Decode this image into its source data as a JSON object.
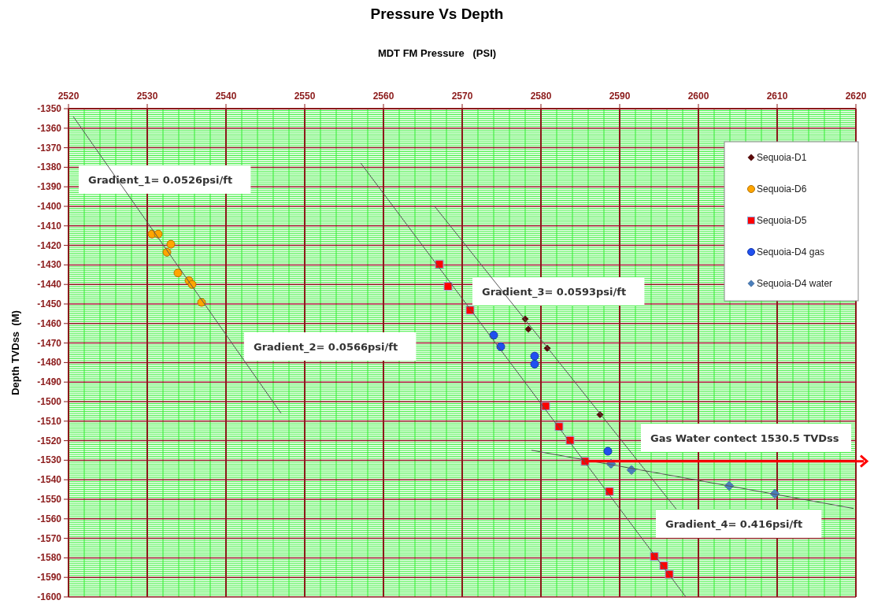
{
  "chart_data": {
    "type": "scatter",
    "title": "Pressure Vs Depth",
    "xlabel": "MDT FM Pressure   (PSI)",
    "ylabel": "Depth TVDss  (M)",
    "xlim": [
      2520,
      2620
    ],
    "xticks": [
      2520,
      2530,
      2540,
      2550,
      2560,
      2570,
      2580,
      2590,
      2600,
      2610,
      2620
    ],
    "ylim": [
      -1600,
      -1350
    ],
    "yticks": [
      -1350,
      -1360,
      -1370,
      -1380,
      -1390,
      -1400,
      -1410,
      -1420,
      -1430,
      -1440,
      -1450,
      -1460,
      -1470,
      -1480,
      -1490,
      -1500,
      -1510,
      -1520,
      -1530,
      -1540,
      -1550,
      -1560,
      -1570,
      -1580,
      -1590,
      -1600
    ],
    "grid": true,
    "legend": "top right",
    "series": [
      {
        "name": "Sequoia-D1",
        "marker": "diamond",
        "color": "#5c0a0a",
        "x": [
          2578.0,
          2578.4,
          2580.8,
          2587.5
        ],
        "values": [
          -1457.7,
          -1462.9,
          -1472.7,
          -1506.7
        ]
      },
      {
        "name": "Sequoia-D6",
        "marker": "circle",
        "color": "#ffa500",
        "x": [
          2530.6,
          2531.4,
          2533.0,
          2532.5,
          2533.9,
          2535.3,
          2535.7,
          2536.9
        ],
        "values": [
          -1414.2,
          -1414.2,
          -1419.4,
          -1423.5,
          -1434.1,
          -1438.0,
          -1440.0,
          -1449.2
        ]
      },
      {
        "name": "Sequoia-D5",
        "marker": "square",
        "color": "#ff0000",
        "x": [
          2567.1,
          2568.2,
          2571.0,
          2580.6,
          2582.3,
          2583.7,
          2585.6,
          2588.7,
          2594.4,
          2595.6,
          2596.3
        ],
        "values": [
          -1429.7,
          -1441.0,
          -1453.2,
          -1502.3,
          -1512.8,
          -1519.8,
          -1530.6,
          -1546.0,
          -1579.3,
          -1584.0,
          -1588.4
        ]
      },
      {
        "name": "Sequoia-D4 gas",
        "marker": "circle",
        "color": "#2050f0",
        "x": [
          2574.0,
          2574.9,
          2579.2,
          2579.2,
          2588.5
        ],
        "values": [
          -1466.0,
          -1471.9,
          -1476.7,
          -1480.8,
          -1525.4
        ]
      },
      {
        "name": "Sequoia-D4 water",
        "marker": "diamond",
        "color": "#4a7ebb",
        "x": [
          2588.9,
          2591.5,
          2603.9,
          2609.7
        ],
        "values": [
          -1531.9,
          -1535.0,
          -1543.1,
          -1547.2
        ]
      },
      {
        "type": "line",
        "color": "#555555",
        "x": [
          2520.6,
          2547.0
        ],
        "values": [
          -1354,
          -1506
        ]
      },
      {
        "type": "line",
        "color": "#555555",
        "x": [
          2557.1,
          2598.4
        ],
        "values": [
          -1377.8,
          -1600
        ]
      },
      {
        "type": "line",
        "color": "#555555",
        "x": [
          2566.5,
          2597.2
        ],
        "values": [
          -1400,
          -1555.1
        ]
      },
      {
        "type": "line",
        "color": "#555555",
        "x": [
          2578.8,
          2619.7
        ],
        "values": [
          -1524.9,
          -1554.7
        ]
      },
      {
        "type": "line",
        "color": "#ff0000",
        "x": [
          2585.6,
          2620
        ],
        "values": [
          -1530.5,
          -1530.5
        ]
      }
    ],
    "annotations": [
      "Gradient_1= 0.0526psi/ft",
      "Gradient_2= 0.0566psi/ft",
      "Gradient_3= 0.0593psi/ft",
      "Gradient_4= 0.416psi/ft",
      "Gas Water contect 1530.5 TVDss"
    ]
  }
}
